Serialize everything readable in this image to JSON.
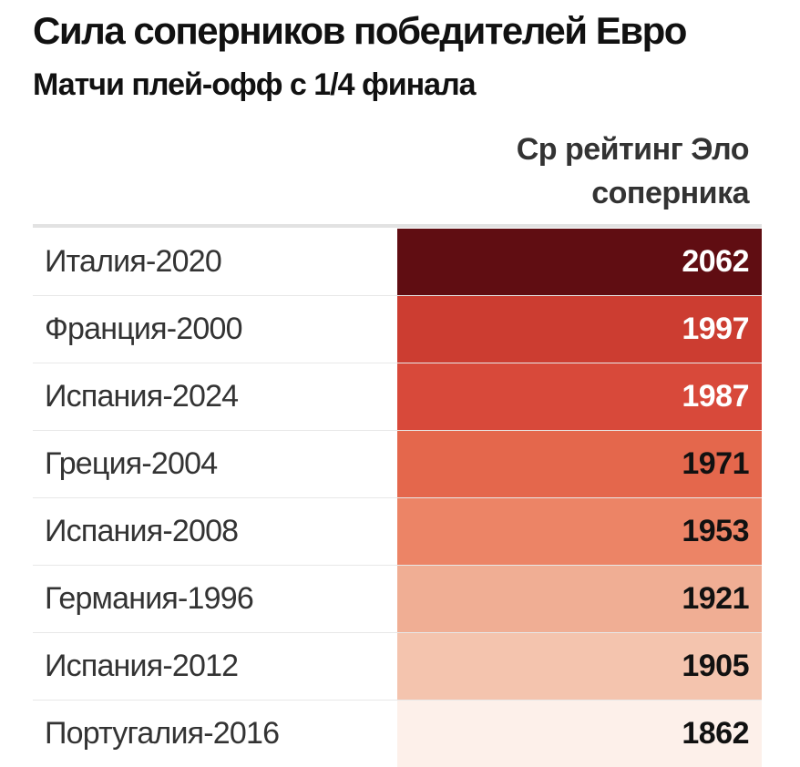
{
  "header": {
    "title": "Сила соперников победителей Евро",
    "subtitle": "Матчи плей-офф с 1/4 финала",
    "column_header_line1": "Ср рейтинг Эло",
    "column_header_line2": "соперника"
  },
  "chart_data": {
    "type": "table",
    "title": "Сила соперников победителей Евро",
    "subtitle": "Матчи плей-офф с 1/4 финала",
    "columns": [
      "",
      "Ср рейтинг Эло соперника"
    ],
    "rows": [
      {
        "label": "Италия-2020",
        "value": 2062,
        "color": "#600d12",
        "text_color": "#ffffff"
      },
      {
        "label": "Франция-2000",
        "value": 1997,
        "color": "#cc3d31",
        "text_color": "#ffffff"
      },
      {
        "label": "Испания-2024",
        "value": 1987,
        "color": "#d8493a",
        "text_color": "#ffffff"
      },
      {
        "label": "Греция-2004",
        "value": 1971,
        "color": "#e4674c",
        "text_color": "#111111"
      },
      {
        "label": "Испания-2008",
        "value": 1953,
        "color": "#ec8466",
        "text_color": "#111111"
      },
      {
        "label": "Германия-1996",
        "value": 1921,
        "color": "#f0ae94",
        "text_color": "#111111"
      },
      {
        "label": "Испания-2012",
        "value": 1905,
        "color": "#f4c4ae",
        "text_color": "#111111"
      },
      {
        "label": "Португалия-2016",
        "value": 1862,
        "color": "#fdf0ea",
        "text_color": "#111111"
      }
    ]
  }
}
